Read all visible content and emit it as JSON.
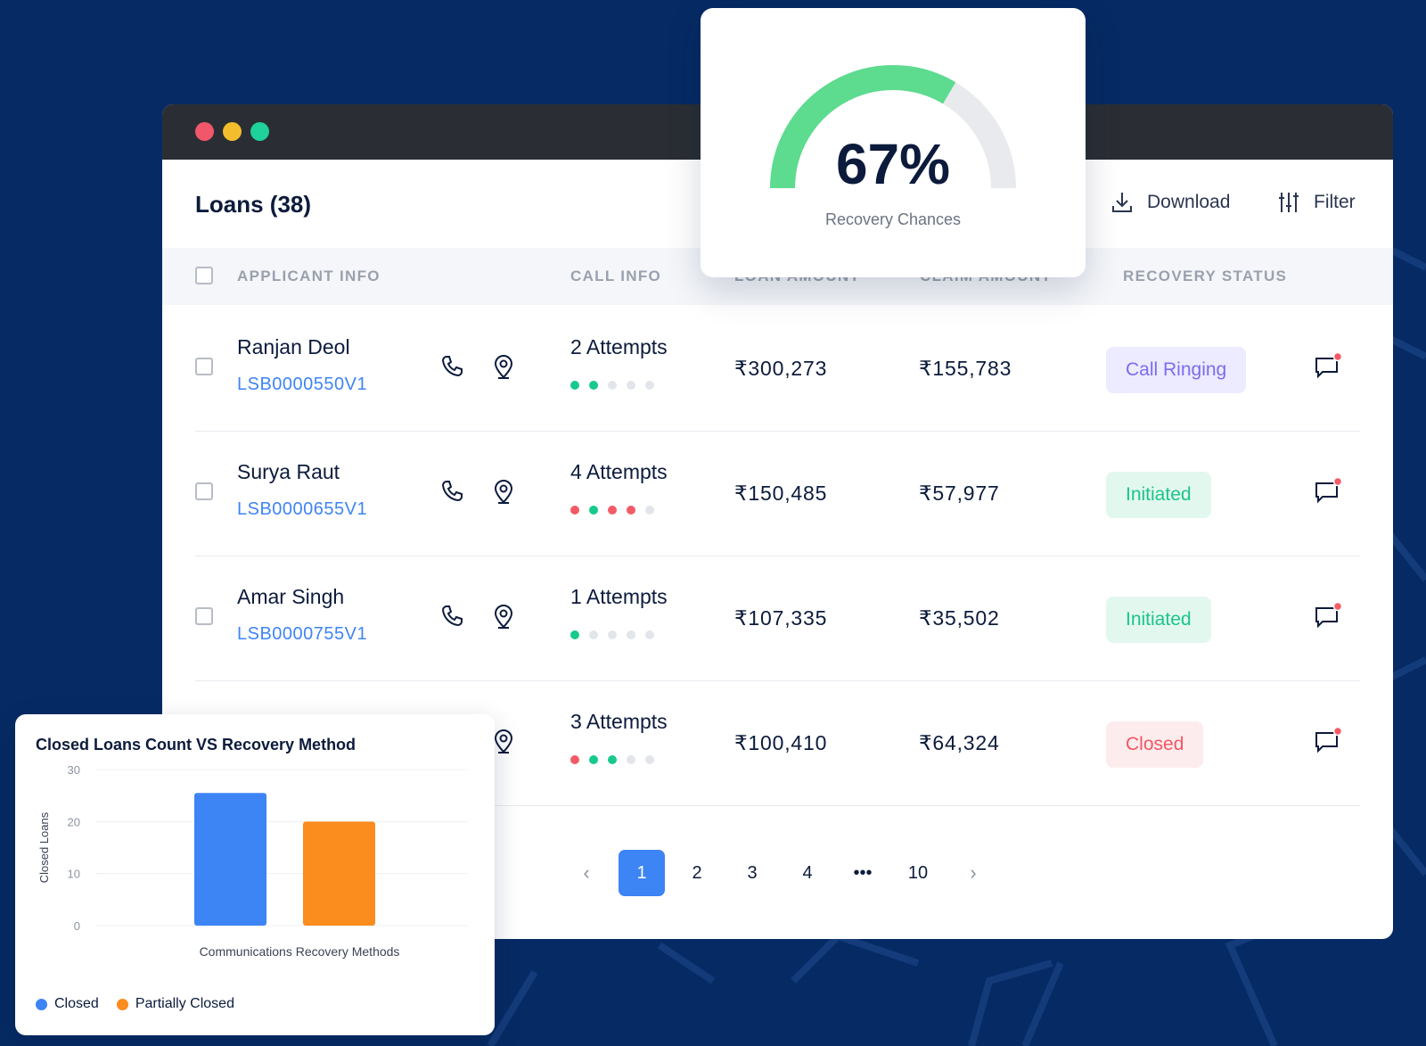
{
  "window": {
    "title": "Loans (38)",
    "download_label": "Download",
    "filter_label": "Filter"
  },
  "table": {
    "headers": [
      "APPLICANT INFO",
      "CALL INFO",
      "LOAN AMOUNT",
      "CLAIM AMOUNT",
      "RECOVERY STATUS"
    ],
    "rows": [
      {
        "name": "Ranjan Deol",
        "code": "LSB0000550V1",
        "attempts": "2 Attempts",
        "dots": [
          "g",
          "g",
          "n",
          "n",
          "n"
        ],
        "loan": "₹300,273",
        "claim": "₹155,783",
        "status": "Call Ringing",
        "status_type": "ringing"
      },
      {
        "name": "Surya Raut",
        "code": "LSB0000655V1",
        "attempts": "4 Attempts",
        "dots": [
          "r",
          "g",
          "r",
          "r",
          "n"
        ],
        "loan": "₹150,485",
        "claim": "₹57,977",
        "status": "Initiated",
        "status_type": "initiated"
      },
      {
        "name": "Amar Singh",
        "code": "LSB0000755V1",
        "attempts": "1 Attempts",
        "dots": [
          "g",
          "n",
          "n",
          "n",
          "n"
        ],
        "loan": "₹107,335",
        "claim": "₹35,502",
        "status": "Initiated",
        "status_type": "initiated"
      },
      {
        "name": "",
        "code": "",
        "attempts": "3 Attempts",
        "dots": [
          "r",
          "g",
          "g",
          "n",
          "n"
        ],
        "loan": "₹100,410",
        "claim": "₹64,324",
        "status": "Closed",
        "status_type": "closed"
      }
    ]
  },
  "pagination": {
    "pages": [
      "1",
      "2",
      "3",
      "4",
      "•••",
      "10"
    ],
    "active": "1",
    "prev": "‹",
    "next": "›"
  },
  "gauge": {
    "value_label": "67%",
    "value": 0.67,
    "label": "Recovery Chances",
    "color": "#5ddb8f",
    "track_color": "#e8eaed"
  },
  "chart_data": {
    "type": "bar",
    "title": "Closed Loans Count  VS  Recovery Method",
    "xlabel": "Communications Recovery Methods",
    "ylabel": "Closed Loans",
    "ylim": [
      0,
      30
    ],
    "yticks": [
      0,
      10,
      20,
      30
    ],
    "series": [
      {
        "name": "Closed",
        "values": [
          25.5
        ],
        "color": "#3d84f5"
      },
      {
        "name": "Partially Closed",
        "values": [
          20
        ],
        "color": "#fb8c1e"
      }
    ],
    "grid": true,
    "legend": "bottom-left"
  }
}
